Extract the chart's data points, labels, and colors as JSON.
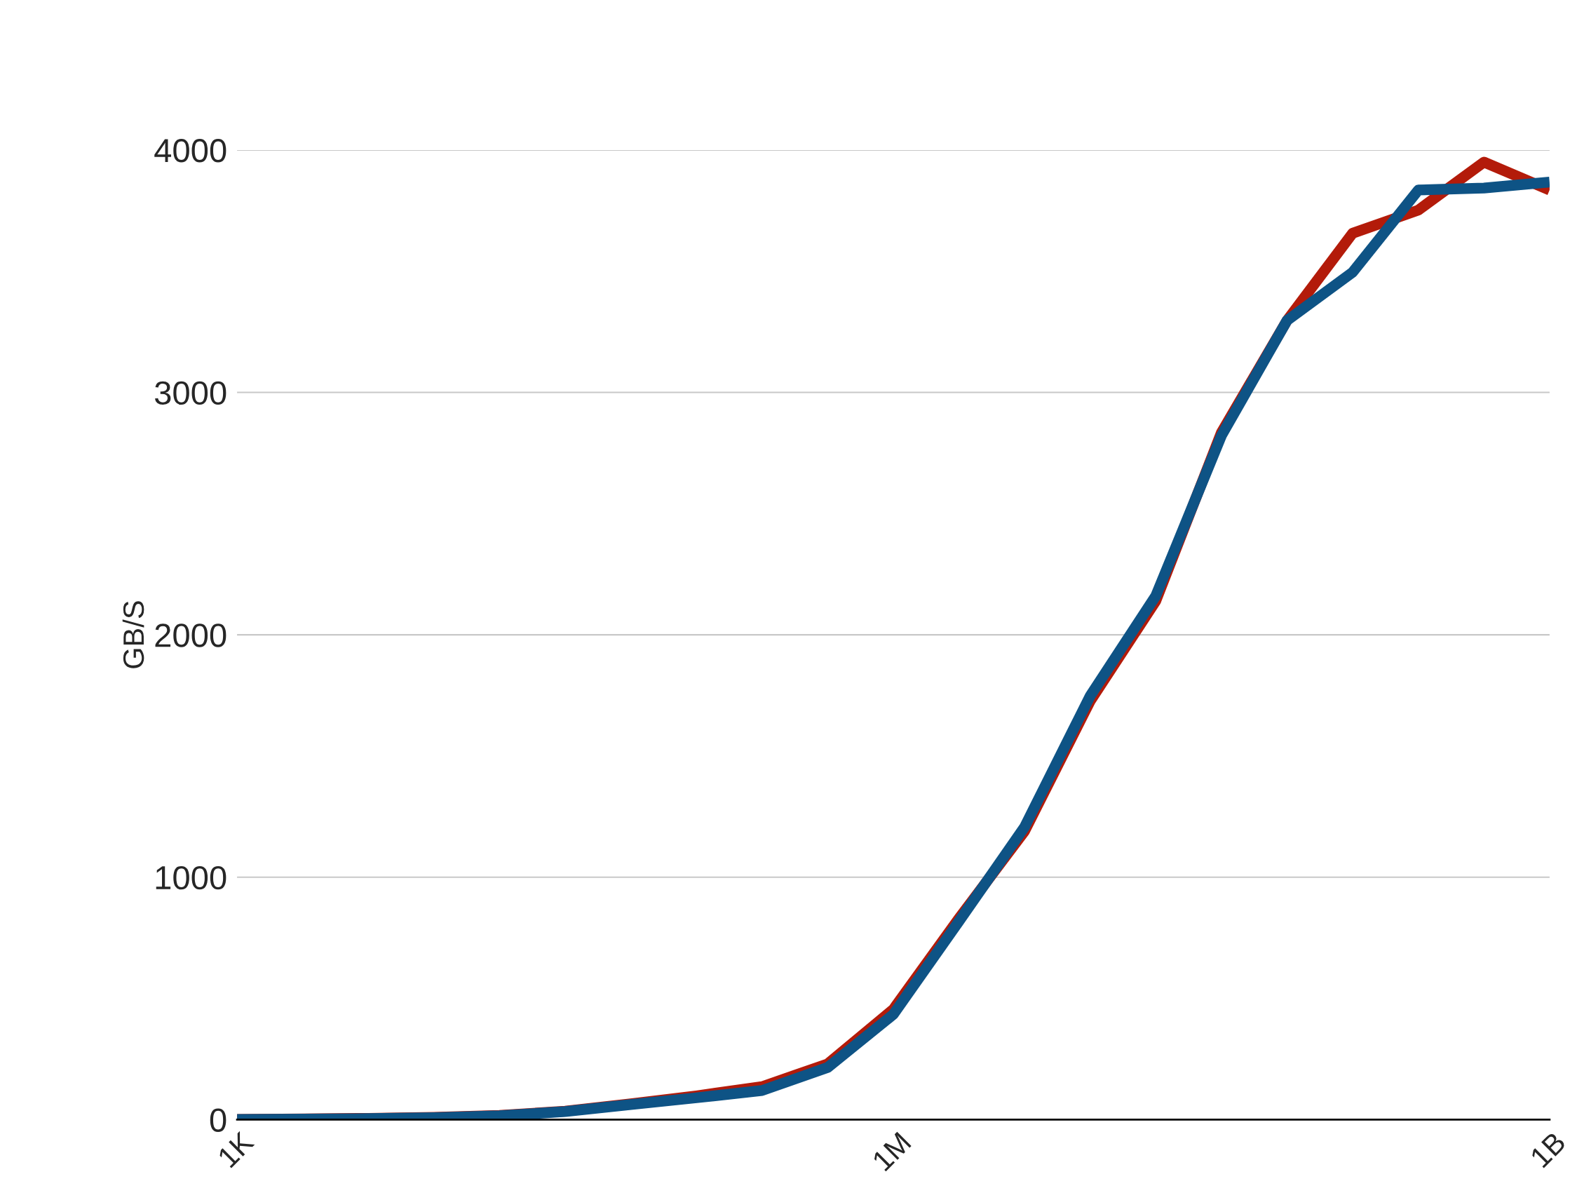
{
  "chart_data": {
    "type": "line",
    "ylabel": "GB/S",
    "x": [
      1024,
      2048,
      4096,
      8192,
      16384,
      32768,
      65536,
      131072,
      262144,
      524288,
      1048576,
      2097152,
      4194304,
      8388608,
      16777216,
      33554432,
      67108864,
      134217728,
      268435456,
      536870912,
      1073741824
    ],
    "series": [
      {
        "color": "#b31b0a",
        "values": [
          1,
          3,
          5,
          9,
          17,
          35,
          65,
          98,
          136,
          230,
          455,
          830,
          1190,
          1727,
          2140,
          2835,
          3297,
          3657,
          3752,
          3950,
          3835
        ]
      },
      {
        "color": "#0e5385",
        "values": [
          1,
          2,
          4,
          8,
          16,
          33,
          62,
          90,
          120,
          215,
          434,
          818,
          1207,
          1748,
          2161,
          2822,
          3297,
          3496,
          3835,
          3843,
          3868
        ]
      }
    ],
    "log": "x",
    "xlim": [
      1024,
      1073741824
    ],
    "xticks": [
      {
        "value": 1024,
        "label": "1K"
      },
      {
        "value": 1048576,
        "label": "1M"
      },
      {
        "value": 1073741824,
        "label": "1B"
      }
    ],
    "ylim": [
      0,
      4000
    ],
    "yticks": [
      0,
      1000,
      2000,
      3000,
      4000
    ],
    "grid": "y",
    "marker": "none",
    "line_style": "solid"
  }
}
